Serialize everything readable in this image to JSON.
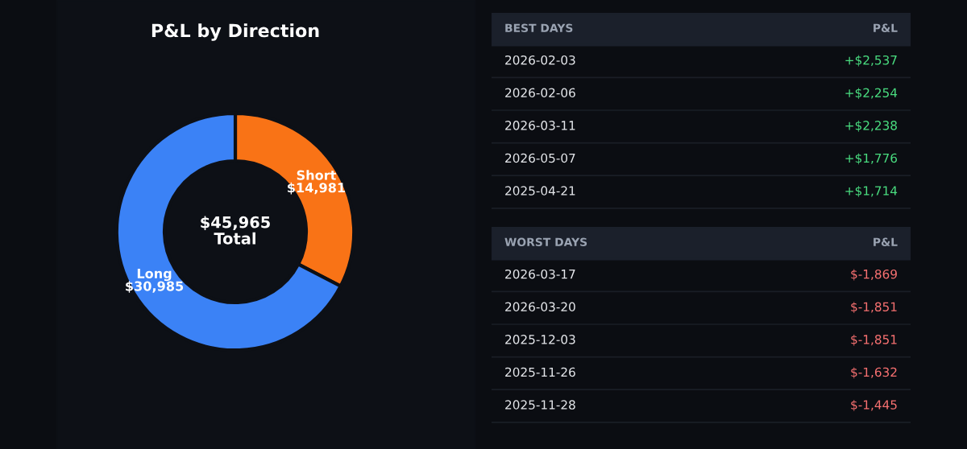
{
  "chart_data": [
    {
      "type": "donut",
      "title": "P&L by Direction",
      "categories": [
        "Short",
        "Long"
      ],
      "values": [
        14981,
        30985
      ],
      "colors": [
        "#f97316",
        "#3b82f6"
      ],
      "value_labels": [
        "$14,981",
        "$30,985"
      ],
      "annotations": [
        "$45,965\nTotal"
      ]
    },
    {
      "type": "other",
      "title": "BEST DAYS",
      "subtitle": "P&L",
      "annotations": [
        "2026-02-03",
        "+$2,537",
        "2026-02-06",
        "+$2,254",
        "2026-03-11",
        "+$2,238",
        "2026-05-07",
        "+$1,776",
        "2025-04-21",
        "+$1,714"
      ]
    },
    {
      "type": "other",
      "title": "WORST DAYS",
      "subtitle": "P&L",
      "annotations": [
        "2026-03-17",
        "$-1,869",
        "2026-03-20",
        "$-1,851",
        "2025-12-03",
        "$-1,851",
        "2025-11-26",
        "$-1,632",
        "2025-11-28",
        "$-1,445"
      ]
    }
  ]
}
